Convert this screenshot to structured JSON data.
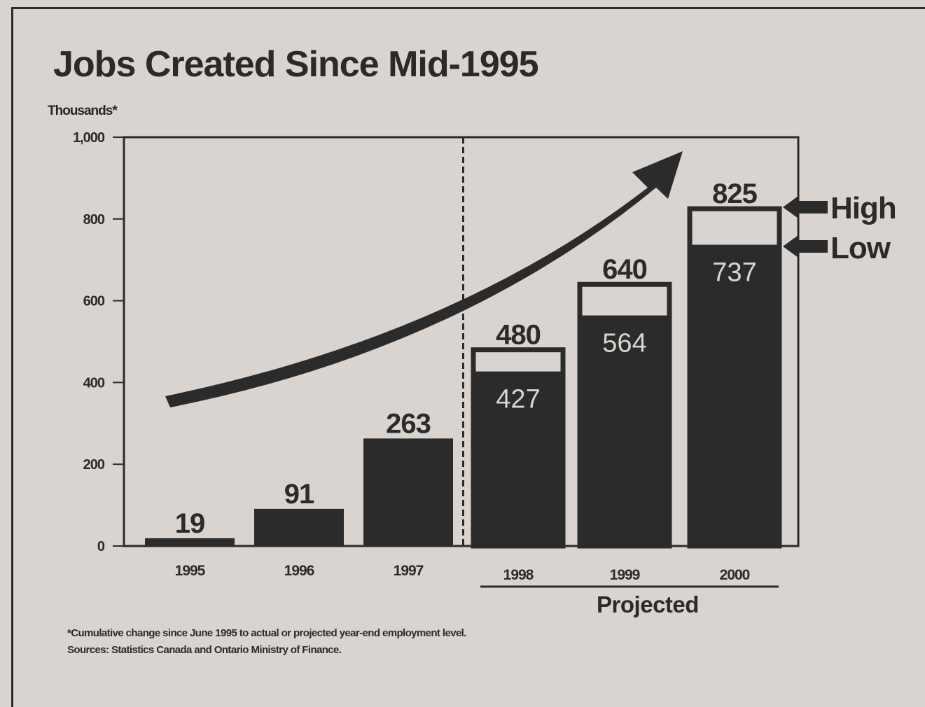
{
  "chart_data": {
    "type": "bar",
    "title": "Jobs Created Since Mid-1995",
    "ylabel": "Thousands*",
    "ylim": [
      0,
      1000
    ],
    "yticks": [
      0,
      200,
      400,
      600,
      800,
      1000
    ],
    "ytick_labels": [
      "0",
      "200",
      "400",
      "600",
      "800",
      "1,000"
    ],
    "categories": [
      "1995",
      "1996",
      "1997",
      "1998",
      "1999",
      "2000"
    ],
    "series": [
      {
        "name": "High",
        "values": [
          19,
          91,
          263,
          480,
          640,
          825
        ]
      },
      {
        "name": "Low",
        "values": [
          null,
          null,
          null,
          427,
          564,
          737
        ]
      }
    ],
    "value_labels": [
      "19",
      "91",
      "263",
      "480",
      "640",
      "825"
    ],
    "low_labels": [
      "",
      "",
      "",
      "427",
      "564",
      "737"
    ],
    "projected_label": "Projected",
    "projected_from_index": 3,
    "legend": {
      "high": "High",
      "low": "Low",
      "placement": "right"
    },
    "grid": false,
    "footnotes": [
      "*Cumulative change since June 1995 to actual or projected year-end employment level.",
      "Sources: Statistics Canada and Ontario Ministry of Finance."
    ],
    "colors": {
      "bar": "#2b2b2b",
      "background": "#d9d4cf",
      "text": "#262626"
    }
  }
}
